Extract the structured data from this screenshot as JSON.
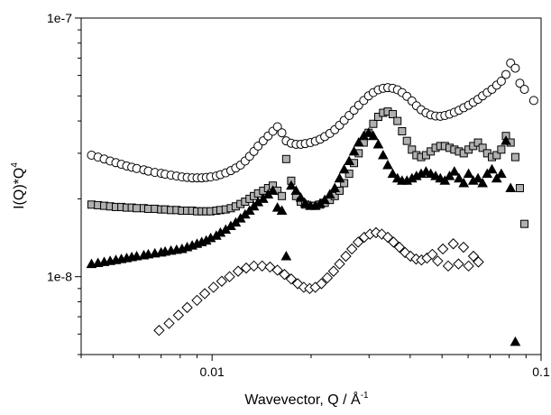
{
  "chart_data": {
    "type": "scatter",
    "title": "",
    "xlabel": "Wavevector, Q / Å",
    "xlabel_superscript": "-1",
    "ylabel": "I(Q)*Q",
    "ylabel_superscript": "4",
    "xscale": "log",
    "yscale": "log",
    "xlim": [
      0.004,
      0.1
    ],
    "ylim": [
      5e-09,
      1e-07
    ],
    "xticks": [
      {
        "value": 0.01,
        "label": "0.01"
      },
      {
        "value": 0.1,
        "label": "0.1"
      }
    ],
    "yticks": [
      {
        "value": 1e-08,
        "label": "1e-8"
      },
      {
        "value": 1e-07,
        "label": "1e-7"
      }
    ],
    "grid": false,
    "legend": "none",
    "series": [
      {
        "marker": "open-circle",
        "x": [
          0.0043,
          0.0045,
          0.0047,
          0.0049,
          0.0051,
          0.0053,
          0.0055,
          0.0057,
          0.0059,
          0.0062,
          0.0064,
          0.0067,
          0.007,
          0.0072,
          0.0075,
          0.0078,
          0.0081,
          0.0084,
          0.0087,
          0.009,
          0.0093,
          0.0096,
          0.0099,
          0.0103,
          0.0106,
          0.011,
          0.0114,
          0.0118,
          0.0122,
          0.0126,
          0.013,
          0.0134,
          0.0138,
          0.0143,
          0.0148,
          0.0153,
          0.0158,
          0.0163,
          0.0168,
          0.0174,
          0.018,
          0.0186,
          0.0192,
          0.0199,
          0.0206,
          0.0213,
          0.022,
          0.0228,
          0.0236,
          0.0244,
          0.0252,
          0.0261,
          0.027,
          0.0279,
          0.0289,
          0.0299,
          0.0309,
          0.032,
          0.0331,
          0.0342,
          0.0354,
          0.0366,
          0.0378,
          0.0391,
          0.0405,
          0.0418,
          0.0432,
          0.0447,
          0.0462,
          0.0478,
          0.0494,
          0.051,
          0.0527,
          0.0545,
          0.0563,
          0.0582,
          0.0602,
          0.0622,
          0.0643,
          0.0664,
          0.0686,
          0.0709,
          0.0733,
          0.0757,
          0.0782,
          0.0808,
          0.0835,
          0.0862,
          0.089,
          0.095
        ],
        "y": [
          2.95e-08,
          2.9e-08,
          2.85e-08,
          2.8e-08,
          2.76e-08,
          2.72e-08,
          2.68e-08,
          2.65e-08,
          2.62e-08,
          2.59e-08,
          2.56e-08,
          2.53e-08,
          2.51e-08,
          2.49e-08,
          2.47e-08,
          2.45e-08,
          2.43e-08,
          2.42e-08,
          2.41e-08,
          2.41e-08,
          2.41e-08,
          2.42e-08,
          2.43e-08,
          2.45e-08,
          2.48e-08,
          2.52e-08,
          2.57e-08,
          2.63e-08,
          2.7e-08,
          2.8e-08,
          2.92e-08,
          3.05e-08,
          3.2e-08,
          3.35e-08,
          3.5e-08,
          3.65e-08,
          3.8e-08,
          3.6e-08,
          3.35e-08,
          3.28e-08,
          3.25e-08,
          3.25e-08,
          3.27e-08,
          3.3e-08,
          3.34e-08,
          3.4e-08,
          3.48e-08,
          3.58e-08,
          3.7e-08,
          3.85e-08,
          4.02e-08,
          4.2e-08,
          4.4e-08,
          4.6e-08,
          4.8e-08,
          5e-08,
          5.15e-08,
          5.28e-08,
          5.35e-08,
          5.38e-08,
          5.35e-08,
          5.28e-08,
          5.15e-08,
          4.98e-08,
          4.78e-08,
          4.58e-08,
          4.42e-08,
          4.3e-08,
          4.22e-08,
          4.18e-08,
          4.17e-08,
          4.2e-08,
          4.25e-08,
          4.32e-08,
          4.4e-08,
          4.5e-08,
          4.6e-08,
          4.72e-08,
          4.85e-08,
          5e-08,
          5.15e-08,
          5.3e-08,
          5.5e-08,
          5.7e-08,
          6.05e-08,
          6.7e-08,
          6.4e-08,
          5.6e-08,
          5.3e-08,
          4.8e-08
        ]
      },
      {
        "marker": "gray-square",
        "x": [
          0.0043,
          0.0045,
          0.0047,
          0.0049,
          0.0051,
          0.0053,
          0.0055,
          0.0057,
          0.0059,
          0.0062,
          0.0064,
          0.0067,
          0.007,
          0.0072,
          0.0075,
          0.0078,
          0.0081,
          0.0084,
          0.0087,
          0.009,
          0.0093,
          0.0096,
          0.0099,
          0.0103,
          0.0106,
          0.011,
          0.0114,
          0.0118,
          0.0122,
          0.0126,
          0.013,
          0.0134,
          0.0138,
          0.0143,
          0.0148,
          0.0153,
          0.0158,
          0.0163,
          0.0168,
          0.0174,
          0.018,
          0.0186,
          0.0192,
          0.0199,
          0.0206,
          0.0213,
          0.022,
          0.0228,
          0.0236,
          0.0244,
          0.0252,
          0.0261,
          0.027,
          0.0279,
          0.0289,
          0.0299,
          0.0309,
          0.032,
          0.0331,
          0.0342,
          0.0354,
          0.0366,
          0.0378,
          0.0391,
          0.0405,
          0.0418,
          0.0432,
          0.0447,
          0.0462,
          0.0478,
          0.0494,
          0.051,
          0.0527,
          0.0545,
          0.0563,
          0.0582,
          0.0602,
          0.0622,
          0.0643,
          0.0664,
          0.0686,
          0.0709,
          0.0733,
          0.0757,
          0.0782,
          0.0808,
          0.0835,
          0.0862,
          0.089
        ],
        "y": [
          1.9e-08,
          1.89e-08,
          1.88e-08,
          1.87e-08,
          1.86e-08,
          1.86e-08,
          1.85e-08,
          1.85e-08,
          1.84e-08,
          1.84e-08,
          1.83e-08,
          1.83e-08,
          1.82e-08,
          1.82e-08,
          1.81e-08,
          1.81e-08,
          1.8e-08,
          1.8e-08,
          1.8e-08,
          1.79e-08,
          1.79e-08,
          1.79e-08,
          1.79e-08,
          1.8e-08,
          1.81e-08,
          1.82e-08,
          1.84e-08,
          1.87e-08,
          1.91e-08,
          1.95e-08,
          2e-08,
          2.05e-08,
          2.1e-08,
          2.15e-08,
          2.2e-08,
          2.25e-08,
          2.15e-08,
          2.05e-08,
          2.85e-08,
          2.35e-08,
          2.05e-08,
          1.95e-08,
          1.9e-08,
          1.88e-08,
          1.88e-08,
          1.9e-08,
          1.93e-08,
          1.98e-08,
          2.05e-08,
          2.15e-08,
          2.3e-08,
          2.5e-08,
          2.75e-08,
          3e-08,
          3.3e-08,
          3.6e-08,
          3.9e-08,
          4.15e-08,
          4.3e-08,
          4.35e-08,
          4.25e-08,
          4e-08,
          3.65e-08,
          3.35e-08,
          3.1e-08,
          2.95e-08,
          2.9e-08,
          2.95e-08,
          3.05e-08,
          3.15e-08,
          3.2e-08,
          3.2e-08,
          3.15e-08,
          3.1e-08,
          3.05e-08,
          3e-08,
          3.1e-08,
          3.2e-08,
          3.3e-08,
          3.15e-08,
          3e-08,
          2.9e-08,
          2.95e-08,
          3.1e-08,
          3.5e-08,
          3.3e-08,
          2.9e-08,
          2.2e-08,
          1.6e-08
        ]
      },
      {
        "marker": "black-triangle",
        "x": [
          0.0043,
          0.0045,
          0.0047,
          0.0049,
          0.0051,
          0.0053,
          0.0055,
          0.0057,
          0.0059,
          0.0062,
          0.0064,
          0.0067,
          0.007,
          0.0072,
          0.0075,
          0.0078,
          0.0081,
          0.0084,
          0.0087,
          0.009,
          0.0093,
          0.0096,
          0.0099,
          0.0103,
          0.0106,
          0.011,
          0.0114,
          0.0118,
          0.0122,
          0.0126,
          0.013,
          0.0134,
          0.0138,
          0.0143,
          0.0148,
          0.0153,
          0.0158,
          0.0163,
          0.0168,
          0.0174,
          0.018,
          0.0186,
          0.0192,
          0.0199,
          0.0206,
          0.0213,
          0.022,
          0.0228,
          0.0236,
          0.0244,
          0.0252,
          0.0261,
          0.027,
          0.0279,
          0.0289,
          0.0299,
          0.0309,
          0.032,
          0.0331,
          0.0342,
          0.0354,
          0.0366,
          0.0378,
          0.0391,
          0.0405,
          0.0418,
          0.0432,
          0.0447,
          0.0462,
          0.0478,
          0.0494,
          0.051,
          0.0527,
          0.0545,
          0.0563,
          0.0582,
          0.0602,
          0.0622,
          0.0643,
          0.0664,
          0.0686,
          0.0709,
          0.0733,
          0.0757,
          0.0782,
          0.0808,
          0.0835
        ],
        "y": [
          1.12e-08,
          1.13e-08,
          1.14e-08,
          1.15e-08,
          1.16e-08,
          1.17e-08,
          1.18e-08,
          1.19e-08,
          1.2e-08,
          1.21e-08,
          1.22e-08,
          1.23e-08,
          1.24e-08,
          1.25e-08,
          1.26e-08,
          1.27e-08,
          1.28e-08,
          1.3e-08,
          1.32e-08,
          1.34e-08,
          1.36e-08,
          1.38e-08,
          1.41e-08,
          1.44e-08,
          1.48e-08,
          1.52e-08,
          1.57e-08,
          1.62e-08,
          1.68e-08,
          1.74e-08,
          1.8e-08,
          1.87e-08,
          1.94e-08,
          2e-08,
          2.08e-08,
          2.15e-08,
          1.85e-08,
          1.8e-08,
          1.2e-08,
          2.25e-08,
          2.15e-08,
          2.02e-08,
          1.92e-08,
          1.88e-08,
          1.88e-08,
          1.92e-08,
          1.98e-08,
          2.08e-08,
          2.2e-08,
          2.4e-08,
          2.6e-08,
          2.8e-08,
          3.05e-08,
          3.3e-08,
          3.5e-08,
          3.6e-08,
          3.5e-08,
          3.25e-08,
          2.95e-08,
          2.7e-08,
          2.5e-08,
          2.4e-08,
          2.35e-08,
          2.35e-08,
          2.4e-08,
          2.45e-08,
          2.5e-08,
          2.55e-08,
          2.5e-08,
          2.45e-08,
          2.4e-08,
          2.35e-08,
          2.45e-08,
          2.55e-08,
          2.4e-08,
          2.3e-08,
          2.5e-08,
          2.35e-08,
          2.4e-08,
          2.3e-08,
          2.5e-08,
          2.6e-08,
          2.4e-08,
          2.5e-08,
          3.35e-08,
          2.2e-08,
          5.6e-09
        ]
      },
      {
        "marker": "open-diamond",
        "x": [
          0.0069,
          0.0074,
          0.0079,
          0.0084,
          0.009,
          0.0095,
          0.0101,
          0.0107,
          0.0113,
          0.012,
          0.0127,
          0.0134,
          0.0142,
          0.015,
          0.0158,
          0.0166,
          0.0174,
          0.0182,
          0.019,
          0.0198,
          0.0206,
          0.0215,
          0.0224,
          0.0234,
          0.0244,
          0.0255,
          0.0266,
          0.0278,
          0.029,
          0.0302,
          0.0315,
          0.0328,
          0.0342,
          0.0356,
          0.0371,
          0.0386,
          0.0401,
          0.0417,
          0.0433,
          0.045,
          0.0467,
          0.0485,
          0.0503,
          0.0522,
          0.0541,
          0.0561,
          0.0581,
          0.0602,
          0.0623,
          0.0645
        ],
        "y": [
          6.2e-09,
          6.6e-09,
          7.1e-09,
          7.6e-09,
          8.1e-09,
          8.6e-09,
          9.1e-09,
          9.6e-09,
          1e-08,
          1.05e-08,
          1.08e-08,
          1.1e-08,
          1.1e-08,
          1.09e-08,
          1.06e-08,
          1.02e-08,
          9.8e-09,
          9.4e-09,
          9.1e-09,
          9e-09,
          9.1e-09,
          9.4e-09,
          9.9e-09,
          1.05e-08,
          1.12e-08,
          1.2e-08,
          1.28e-08,
          1.36e-08,
          1.42e-08,
          1.46e-08,
          1.48e-08,
          1.46e-08,
          1.42e-08,
          1.36e-08,
          1.3e-08,
          1.24e-08,
          1.2e-08,
          1.17e-08,
          1.16e-08,
          1.18e-08,
          1.22e-08,
          1.15e-08,
          1.28e-08,
          1.1e-08,
          1.34e-08,
          1.12e-08,
          1.3e-08,
          1.1e-08,
          1.2e-08,
          1.14e-08
        ]
      }
    ]
  }
}
